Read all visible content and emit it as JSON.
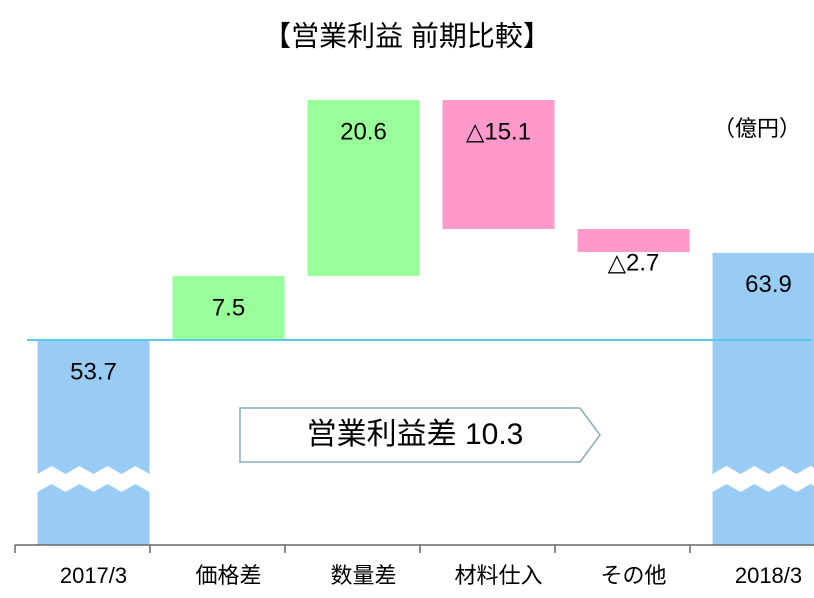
{
  "chart_data": {
    "type": "waterfall",
    "title": "【営業利益 前期比較】",
    "unit_label": "（億円）",
    "categories": [
      "2017/3",
      "価格差",
      "数量差",
      "材料仕入",
      "その他",
      "2018/3"
    ],
    "values": [
      53.7,
      7.5,
      20.6,
      -15.1,
      -2.7,
      63.9
    ],
    "value_labels": [
      "53.7",
      "7.5",
      "20.6",
      "△15.1",
      "△2.7",
      "63.9"
    ],
    "totals": [
      true,
      false,
      false,
      false,
      false,
      true
    ],
    "total_color": "#99ccf5",
    "increase_color": "#99ff99",
    "decrease_color": "#ff99cc",
    "annotation": "営業利益差 10.3"
  }
}
